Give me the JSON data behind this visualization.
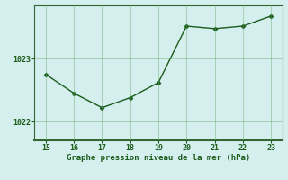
{
  "x": [
    15,
    16,
    17,
    18,
    19,
    20,
    21,
    22,
    23
  ],
  "y": [
    1022.75,
    1022.45,
    1022.22,
    1022.38,
    1022.62,
    1023.52,
    1023.48,
    1023.52,
    1023.68
  ],
  "line_color": "#1a5c1a",
  "marker_color": "#1a5c1a",
  "bg_color": "#d5eeee",
  "grid_color": "#66aa66",
  "axis_color": "#336633",
  "xlabel": "Graphe pression niveau de la mer (hPa)",
  "xlabel_color": "#1a5c1a",
  "tick_color": "#1a5c1a",
  "ytick_labels": [
    "1022",
    "1023"
  ],
  "ytick_values": [
    1022,
    1023
  ],
  "xlim": [
    14.6,
    23.4
  ],
  "ylim": [
    1021.7,
    1023.85
  ],
  "xticks": [
    15,
    16,
    17,
    18,
    19,
    20,
    21,
    22,
    23
  ]
}
